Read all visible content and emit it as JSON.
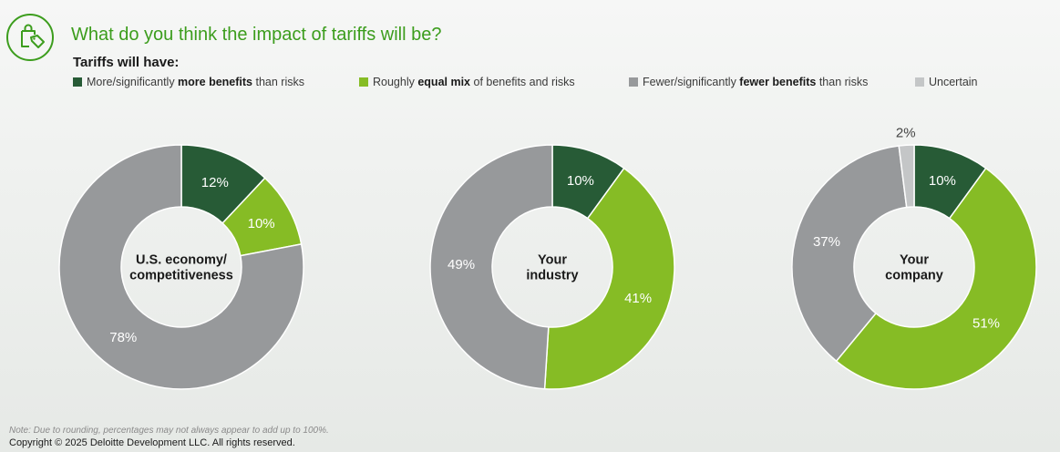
{
  "header": {
    "title": "What do you think the impact of tariffs will be?",
    "subtitle": "Tariffs will have:"
  },
  "legend": {
    "more": {
      "pre": "More/significantly ",
      "bold": "more benefits",
      "post": " than risks"
    },
    "equal": {
      "pre": "Roughly ",
      "bold": "equal mix",
      "post": " of benefits and risks"
    },
    "fewer": {
      "pre": "Fewer/significantly ",
      "bold": "fewer benefits",
      "post": " than risks"
    },
    "uncertain": {
      "pre": "Uncertain",
      "bold": "",
      "post": ""
    }
  },
  "colors": {
    "more": "#275b36",
    "equal": "#86bc25",
    "fewer": "#97999b",
    "uncertain": "#c4c6c7",
    "title": "#3c9d1d"
  },
  "chart_data": [
    {
      "type": "pie",
      "center_label": [
        "U.S. economy/",
        "competitiveness"
      ],
      "categories": [
        "More/significantly more benefits than risks",
        "Roughly equal mix of benefits and risks",
        "Fewer/significantly fewer benefits than risks",
        "Uncertain"
      ],
      "values": [
        12,
        10,
        78,
        0
      ],
      "labels": [
        "12%",
        "10%",
        "78%",
        ""
      ]
    },
    {
      "type": "pie",
      "center_label": [
        "Your",
        "industry"
      ],
      "categories": [
        "More/significantly more benefits than risks",
        "Roughly equal mix of benefits and risks",
        "Fewer/significantly fewer benefits than risks",
        "Uncertain"
      ],
      "values": [
        10,
        41,
        49,
        0
      ],
      "labels": [
        "10%",
        "41%",
        "49%",
        ""
      ]
    },
    {
      "type": "pie",
      "center_label": [
        "Your",
        "company"
      ],
      "categories": [
        "More/significantly more benefits than risks",
        "Roughly equal mix of benefits and risks",
        "Fewer/significantly fewer benefits than risks",
        "Uncertain"
      ],
      "values": [
        10,
        51,
        37,
        2
      ],
      "labels": [
        "10%",
        "51%",
        "37%",
        "2%"
      ]
    }
  ],
  "footer": {
    "note": "Note: Due to rounding, percentages may not always appear to add up to 100%.",
    "copyright": "Copyright © 2025 Deloitte Development LLC. All rights reserved."
  }
}
